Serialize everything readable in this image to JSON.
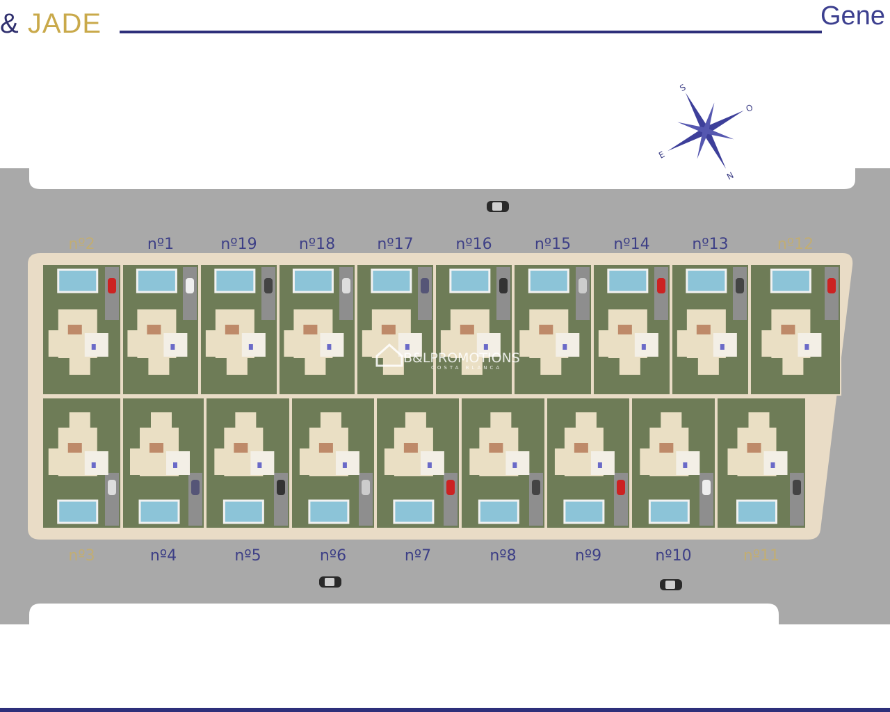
{
  "header": {
    "brand_amp": "&",
    "brand_name": "JADE",
    "right_title": "Gene"
  },
  "colors": {
    "accent_blue": "#2d2f7a",
    "brand_gold": "#c9a94a",
    "road": "#a8a8a8",
    "plot_green": "#6e7c57",
    "perimeter": "#e9dcc6",
    "pool": "#8cc4d8"
  },
  "lots": {
    "top": [
      {
        "label": "nº2",
        "corner": true
      },
      {
        "label": "nº1",
        "corner": false
      },
      {
        "label": "nº19",
        "corner": false
      },
      {
        "label": "nº18",
        "corner": false
      },
      {
        "label": "nº17",
        "corner": false
      },
      {
        "label": "nº16",
        "corner": false
      },
      {
        "label": "nº15",
        "corner": false
      },
      {
        "label": "nº14",
        "corner": false
      },
      {
        "label": "nº13",
        "corner": false
      },
      {
        "label": "nº12",
        "corner": true
      }
    ],
    "bottom": [
      {
        "label": "nº3",
        "corner": true
      },
      {
        "label": "nº4",
        "corner": false
      },
      {
        "label": "nº5",
        "corner": false
      },
      {
        "label": "nº6",
        "corner": false
      },
      {
        "label": "nº7",
        "corner": false
      },
      {
        "label": "nº8",
        "corner": false
      },
      {
        "label": "nº9",
        "corner": false
      },
      {
        "label": "nº10",
        "corner": false
      },
      {
        "label": "nº11",
        "corner": true
      }
    ]
  },
  "compass": {
    "north": "N",
    "south": "S",
    "east": "E",
    "west": "O"
  },
  "watermark": {
    "name": "B&LPROMOTIONS",
    "tagline": "COSTA BLANCA"
  }
}
